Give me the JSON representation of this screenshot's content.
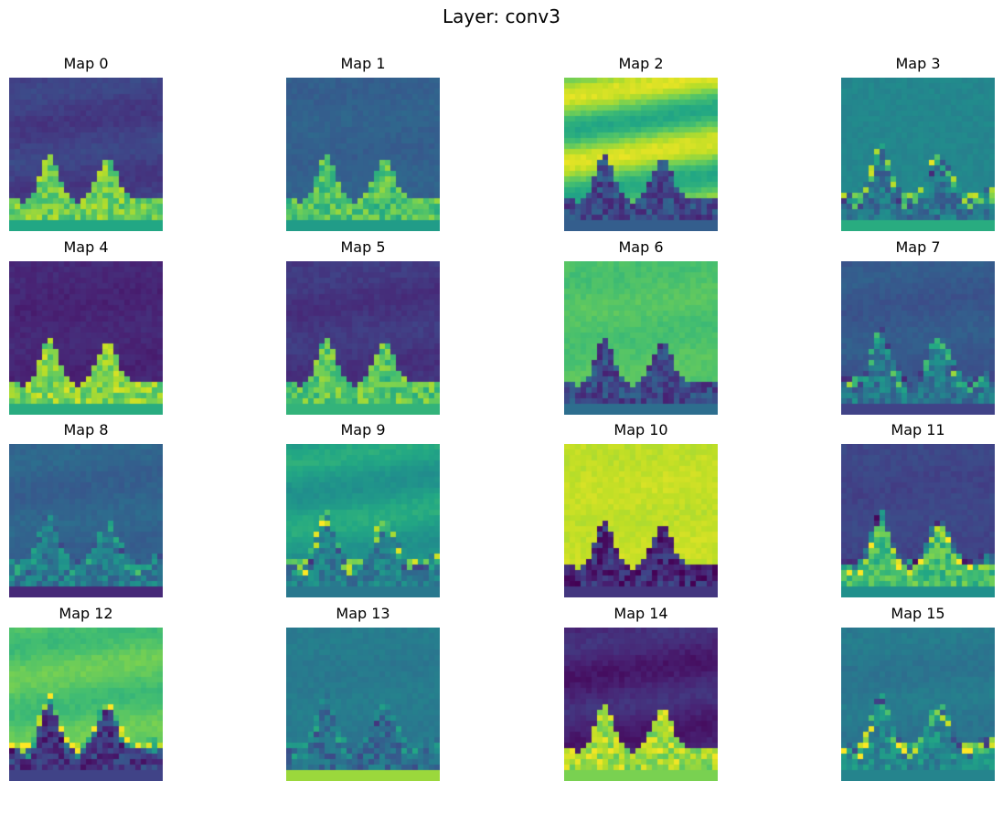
{
  "title": "Layer: conv3",
  "colormap": "viridis",
  "maps": [
    {
      "label": "Map 0",
      "sky": 0.16,
      "band": 0.22,
      "ground": 0.78,
      "base": 0.6,
      "edge": 0.0
    },
    {
      "label": "Map 1",
      "sky": 0.32,
      "band": 0.3,
      "ground": 0.72,
      "base": 0.55,
      "edge": 0.0
    },
    {
      "label": "Map 2",
      "sky": 0.6,
      "band": 0.95,
      "ground": 0.22,
      "base": 0.3,
      "edge": 0.0
    },
    {
      "label": "Map 3",
      "sky": 0.46,
      "band": 0.46,
      "ground": 0.38,
      "base": 0.62,
      "edge": 0.7
    },
    {
      "label": "Map 4",
      "sky": 0.1,
      "band": 0.12,
      "ground": 0.82,
      "base": 0.62,
      "edge": 0.0
    },
    {
      "label": "Map 5",
      "sky": 0.14,
      "band": 0.18,
      "ground": 0.74,
      "base": 0.65,
      "edge": 0.0
    },
    {
      "label": "Map 6",
      "sky": 0.74,
      "band": 0.7,
      "ground": 0.22,
      "base": 0.36,
      "edge": 0.0
    },
    {
      "label": "Map 7",
      "sky": 0.26,
      "band": 0.3,
      "ground": 0.4,
      "base": 0.2,
      "edge": 0.6
    },
    {
      "label": "Map 8",
      "sky": 0.3,
      "band": 0.34,
      "ground": 0.42,
      "base": 0.12,
      "edge": 0.4
    },
    {
      "label": "Map 9",
      "sky": 0.5,
      "band": 0.62,
      "ground": 0.42,
      "base": 0.4,
      "edge": 0.7
    },
    {
      "label": "Map 10",
      "sky": 0.92,
      "band": 0.9,
      "ground": 0.12,
      "base": 0.16,
      "edge": 0.0
    },
    {
      "label": "Map 11",
      "sky": 0.2,
      "band": 0.22,
      "ground": 0.7,
      "base": 0.5,
      "edge": 0.6
    },
    {
      "label": "Map 12",
      "sky": 0.78,
      "band": 0.68,
      "ground": 0.16,
      "base": 0.2,
      "edge": 0.5
    },
    {
      "label": "Map 13",
      "sky": 0.4,
      "band": 0.42,
      "ground": 0.34,
      "base": 0.85,
      "edge": 0.3
    },
    {
      "label": "Map 14",
      "sky": 0.06,
      "band": 0.15,
      "ground": 0.86,
      "base": 0.8,
      "edge": 0.0
    },
    {
      "label": "Map 15",
      "sky": 0.38,
      "band": 0.42,
      "ground": 0.48,
      "base": 0.45,
      "edge": 0.9
    }
  ]
}
